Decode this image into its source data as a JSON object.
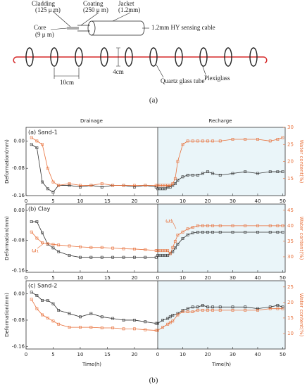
{
  "figure_a": {
    "cladding": "Cladding",
    "cladding_size": "(125 μ m)",
    "coating": "Coating",
    "coating_size": "(250 μ m)",
    "jacket": "Jacket",
    "jacket_size": "(1.2mm)",
    "core": "Core",
    "core_size": "(9 μ m)",
    "cable": "1.2mm HY sensing cable",
    "spacing": "10cm",
    "diameter": "4cm",
    "tube": "Quartz glass tube",
    "plexiglass": "Plexiglass",
    "label": "(a)"
  },
  "headers": {
    "drainage": "Drainage",
    "recharge": "Recharge"
  },
  "figure_b_label": "(b)",
  "chart_data": [
    {
      "type": "line",
      "title": "(a) Sand-1",
      "ylabel": "Deformation(mm)",
      "y2label": "Water content(%)",
      "ylim": [
        -0.16,
        0.04
      ],
      "yticks": [
        {
          "value": 0,
          "label": "0.00"
        },
        -0.08,
        -0.16
      ],
      "y2lim": [
        10,
        30
      ],
      "y2ticks": [
        15,
        20,
        25,
        30
      ],
      "segments": [
        {
          "xlim": [
            0,
            24.3
          ],
          "xticks": [
            0,
            5,
            10,
            15,
            20
          ],
          "series": [
            {
              "color": "#333333",
              "x": [
                1,
                2,
                3,
                4,
                5,
                6,
                8,
                10,
                12,
                14,
                16,
                18,
                20,
                22,
                24
              ],
              "values": [
                -0.01,
                -0.02,
                -0.12,
                -0.14,
                -0.15,
                -0.13,
                -0.13,
                -0.135,
                -0.13,
                -0.135,
                -0.13,
                -0.13,
                -0.135,
                -0.13,
                -0.135
              ]
            },
            {
              "color": "#e8703a",
              "axis": "y2",
              "x": [
                1,
                2,
                3,
                4,
                5,
                6,
                8,
                10,
                12,
                14,
                16,
                18,
                20,
                22,
                24
              ],
              "values": [
                27,
                26,
                25,
                18,
                14,
                13,
                13.5,
                13,
                13,
                13.5,
                13,
                13,
                13,
                13,
                13
              ]
            }
          ]
        },
        {
          "xlim": [
            0,
            51
          ],
          "xticks": [
            0,
            10,
            20,
            30,
            40,
            50
          ],
          "series": [
            {
              "color": "#333333",
              "x": [
                0,
                1,
                2,
                3,
                4,
                5,
                6,
                7,
                8,
                10,
                12,
                14,
                16,
                18,
                20,
                22,
                25,
                30,
                35,
                40,
                45,
                48,
                50
              ],
              "values": [
                -0.14,
                -0.14,
                -0.14,
                -0.14,
                -0.135,
                -0.135,
                -0.13,
                -0.125,
                -0.115,
                -0.105,
                -0.1,
                -0.1,
                -0.1,
                -0.095,
                -0.09,
                -0.095,
                -0.1,
                -0.095,
                -0.09,
                -0.095,
                -0.09,
                -0.09,
                -0.09
              ]
            },
            {
              "color": "#e8703a",
              "axis": "y2",
              "x": [
                0,
                1,
                2,
                3,
                4,
                5,
                6,
                7,
                8,
                10,
                12,
                14,
                16,
                18,
                20,
                22,
                25,
                30,
                35,
                40,
                45,
                48,
                50
              ],
              "values": [
                13,
                13,
                13,
                13,
                13,
                13,
                13.5,
                15,
                20,
                25,
                26,
                26,
                26,
                26,
                26,
                26,
                26,
                26.5,
                26.5,
                26.5,
                26,
                26.5,
                27
              ]
            }
          ]
        }
      ]
    },
    {
      "type": "line",
      "title": "(b) Clay",
      "ylabel": "Deformation(mm)",
      "y2label": "Water content(%)",
      "ylim": [
        -0.165,
        0.017
      ],
      "yticks": [
        {
          "value": 0,
          "label": "0.00"
        },
        -0.08,
        -0.16
      ],
      "y2lim": [
        25,
        47
      ],
      "y2ticks": [
        30,
        35,
        40,
        45
      ],
      "annotations": [
        "ω₁",
        "ω₂"
      ],
      "segments": [
        {
          "xlim": [
            0,
            24.3
          ],
          "xticks": [
            0,
            5,
            10,
            15,
            20
          ],
          "series": [
            {
              "color": "#333333",
              "x": [
                1,
                2,
                3,
                4,
                5,
                6,
                8,
                10,
                12,
                14,
                16,
                18,
                20,
                22,
                24
              ],
              "values": [
                -0.03,
                -0.03,
                -0.06,
                -0.09,
                -0.1,
                -0.11,
                -0.12,
                -0.125,
                -0.125,
                -0.125,
                -0.125,
                -0.125,
                -0.125,
                -0.125,
                -0.125
              ]
            },
            {
              "color": "#e8703a",
              "axis": "y2",
              "x": [
                1,
                2,
                3,
                4,
                5,
                6,
                8,
                10,
                12,
                14,
                16,
                18,
                20,
                22,
                24
              ],
              "values": [
                38,
                36,
                34.5,
                34.2,
                34,
                33.8,
                33.5,
                33.2,
                33,
                33,
                32.8,
                32.6,
                32.5,
                32.3,
                32
              ]
            }
          ]
        },
        {
          "xlim": [
            0,
            51
          ],
          "xticks": [
            0,
            10,
            20,
            30,
            40,
            50
          ],
          "series": [
            {
              "color": "#333333",
              "x": [
                0,
                1,
                2,
                3,
                4,
                5,
                6,
                7,
                8,
                10,
                12,
                14,
                16,
                18,
                20,
                22,
                25,
                30,
                35,
                40,
                45,
                48,
                50
              ],
              "values": [
                -0.12,
                -0.12,
                -0.12,
                -0.12,
                -0.12,
                -0.115,
                -0.11,
                -0.1,
                -0.09,
                -0.075,
                -0.065,
                -0.06,
                -0.058,
                -0.058,
                -0.058,
                -0.058,
                -0.058,
                -0.058,
                -0.058,
                -0.058,
                -0.058,
                -0.058,
                -0.058
              ]
            },
            {
              "color": "#e8703a",
              "axis": "y2",
              "x": [
                0,
                1,
                2,
                3,
                4,
                5,
                6,
                7,
                8,
                10,
                12,
                14,
                16,
                18,
                20,
                22,
                25,
                30,
                35,
                40,
                45,
                48,
                50
              ],
              "values": [
                32,
                32,
                32,
                32,
                32,
                31,
                33,
                35,
                37,
                38,
                39,
                39.5,
                40,
                40,
                40,
                40,
                40,
                40,
                40,
                40,
                40,
                40,
                40
              ]
            }
          ]
        }
      ]
    },
    {
      "type": "line",
      "title": "(c) Sand-2",
      "ylabel": "Deformation(mm)",
      "y2label": "Water content(%)",
      "ylim": [
        -0.168,
        0.04
      ],
      "yticks": [
        {
          "value": 0,
          "label": "0.00"
        },
        -0.08,
        -0.16
      ],
      "y2lim": [
        5,
        27
      ],
      "y2ticks": [
        10,
        15,
        20,
        25
      ],
      "segments": [
        {
          "xlim": [
            0,
            24.3
          ],
          "xticks": [
            0,
            5,
            10,
            15,
            20
          ],
          "xlabel": "Time(h)",
          "series": [
            {
              "color": "#333333",
              "x": [
                1,
                2,
                3,
                4,
                5,
                6,
                8,
                10,
                12,
                14,
                16,
                18,
                20,
                22,
                24
              ],
              "values": [
                0.005,
                -0.005,
                -0.02,
                -0.02,
                -0.03,
                -0.05,
                -0.06,
                -0.07,
                -0.06,
                -0.07,
                -0.075,
                -0.08,
                -0.08,
                -0.085,
                -0.09
              ]
            },
            {
              "color": "#e8703a",
              "axis": "y2",
              "x": [
                1,
                2,
                3,
                4,
                5,
                6,
                8,
                10,
                12,
                14,
                16,
                18,
                20,
                22,
                24
              ],
              "values": [
                21,
                18,
                16,
                15,
                14,
                13,
                12,
                12,
                12,
                11.8,
                11.8,
                11.5,
                11.5,
                11.2,
                11
              ]
            }
          ]
        },
        {
          "xlim": [
            0,
            51
          ],
          "xticks": [
            0,
            10,
            20,
            30,
            40,
            50
          ],
          "xlabel": "Time(h)",
          "series": [
            {
              "color": "#333333",
              "x": [
                0,
                2,
                4,
                5,
                6,
                8,
                10,
                12,
                14,
                16,
                18,
                20,
                22,
                25,
                30,
                35,
                40,
                45,
                48,
                50
              ],
              "values": [
                -0.09,
                -0.08,
                -0.075,
                -0.07,
                -0.065,
                -0.06,
                -0.05,
                -0.045,
                -0.04,
                -0.04,
                -0.035,
                -0.04,
                -0.04,
                -0.04,
                -0.04,
                -0.04,
                -0.045,
                -0.04,
                -0.035,
                -0.04
              ]
            },
            {
              "color": "#e8703a",
              "axis": "y2",
              "x": [
                0,
                2,
                4,
                5,
                6,
                8,
                10,
                12,
                14,
                16,
                18,
                20,
                22,
                25,
                30,
                35,
                40,
                45,
                48,
                50
              ],
              "values": [
                11,
                12,
                13,
                13.5,
                14,
                16,
                17,
                17,
                17,
                17.5,
                17.5,
                17.5,
                17.5,
                17.5,
                17.5,
                17.5,
                17.5,
                18,
                18,
                18
              ]
            }
          ]
        }
      ]
    }
  ]
}
